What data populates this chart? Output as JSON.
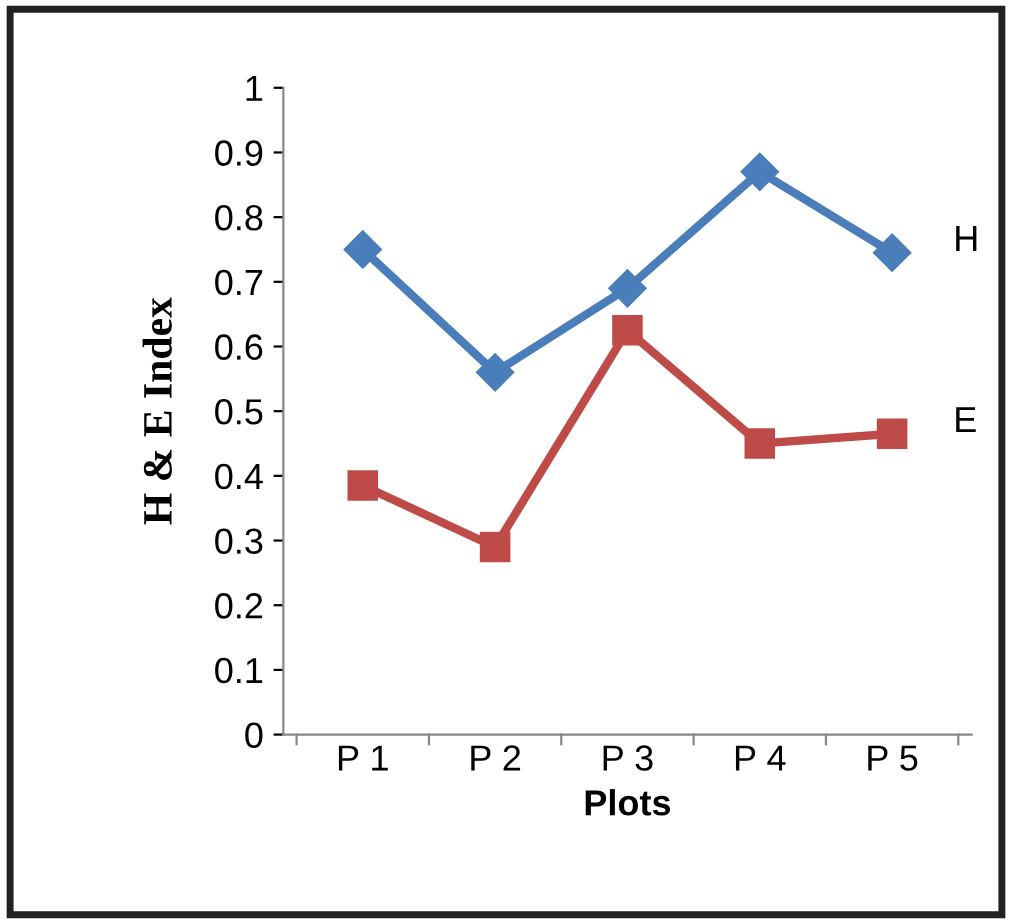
{
  "chart_data": {
    "type": "line",
    "xlabel": "Plots",
    "ylabel": "H & E Index",
    "categories": [
      "P 1",
      "P 2",
      "P 3",
      "P 4",
      "P 5"
    ],
    "series": [
      {
        "name": "H",
        "color": "#4a7ebb",
        "marker": "diamond",
        "values": [
          0.75,
          0.56,
          0.69,
          0.87,
          0.745
        ]
      },
      {
        "name": "E",
        "color": "#be4b48",
        "marker": "square",
        "values": [
          0.385,
          0.29,
          0.625,
          0.45,
          0.465
        ]
      }
    ],
    "ylim": [
      0,
      1
    ],
    "yticks": [
      0,
      0.1,
      0.2,
      0.3,
      0.4,
      0.5,
      0.6,
      0.7,
      0.8,
      0.9,
      1
    ],
    "grid": false,
    "line_style": "solid"
  }
}
